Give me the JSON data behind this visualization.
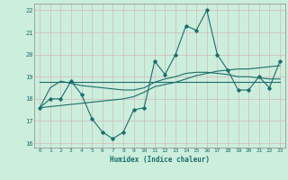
{
  "xlabel": "Humidex (Indice chaleur)",
  "bg_color": "#cceedd",
  "grid_color": "#bbddcc",
  "line_color": "#1a6e6a",
  "xlim": [
    -0.5,
    23.5
  ],
  "ylim": [
    15.8,
    22.3
  ],
  "yticks": [
    16,
    17,
    18,
    19,
    20,
    21,
    22
  ],
  "xticks": [
    0,
    1,
    2,
    3,
    4,
    5,
    6,
    7,
    8,
    9,
    10,
    11,
    12,
    13,
    14,
    15,
    16,
    17,
    18,
    19,
    20,
    21,
    22,
    23
  ],
  "series1_x": [
    0,
    1,
    2,
    3,
    4,
    5,
    6,
    7,
    8,
    9,
    10,
    11,
    12,
    13,
    14,
    15,
    16,
    17,
    18,
    19,
    20,
    21,
    22,
    23
  ],
  "series1_y": [
    17.6,
    18.0,
    18.0,
    18.8,
    18.2,
    17.1,
    16.5,
    16.2,
    16.5,
    17.5,
    17.6,
    19.7,
    19.1,
    20.0,
    21.3,
    21.1,
    22.0,
    20.0,
    19.3,
    18.4,
    18.4,
    19.0,
    18.5,
    19.7
  ],
  "series2_x": [
    0,
    1,
    2,
    3,
    4,
    5,
    6,
    7,
    8,
    9,
    10,
    11,
    12,
    13,
    14,
    15,
    16,
    17,
    18,
    19,
    20,
    21,
    22,
    23
  ],
  "series2_y": [
    18.75,
    18.75,
    18.75,
    18.75,
    18.75,
    18.75,
    18.75,
    18.75,
    18.75,
    18.75,
    18.75,
    18.75,
    18.75,
    18.75,
    18.75,
    18.75,
    18.75,
    18.75,
    18.75,
    18.75,
    18.75,
    18.75,
    18.75,
    18.75
  ],
  "series3_x": [
    0,
    1,
    2,
    3,
    4,
    5,
    6,
    7,
    8,
    9,
    10,
    11,
    12,
    13,
    14,
    15,
    16,
    17,
    18,
    19,
    20,
    21,
    22,
    23
  ],
  "series3_y": [
    17.6,
    17.65,
    17.7,
    17.75,
    17.8,
    17.85,
    17.9,
    17.95,
    18.0,
    18.1,
    18.3,
    18.55,
    18.65,
    18.75,
    18.9,
    19.05,
    19.15,
    19.25,
    19.3,
    19.35,
    19.35,
    19.4,
    19.45,
    19.5
  ],
  "series4_x": [
    0,
    1,
    2,
    3,
    4,
    5,
    6,
    7,
    8,
    9,
    10,
    11,
    12,
    13,
    14,
    15,
    16,
    17,
    18,
    19,
    20,
    21,
    22,
    23
  ],
  "series4_y": [
    17.6,
    18.5,
    18.8,
    18.7,
    18.6,
    18.55,
    18.5,
    18.45,
    18.4,
    18.4,
    18.5,
    18.75,
    18.9,
    19.0,
    19.15,
    19.2,
    19.2,
    19.15,
    19.1,
    19.0,
    19.0,
    18.95,
    18.9,
    18.9
  ]
}
